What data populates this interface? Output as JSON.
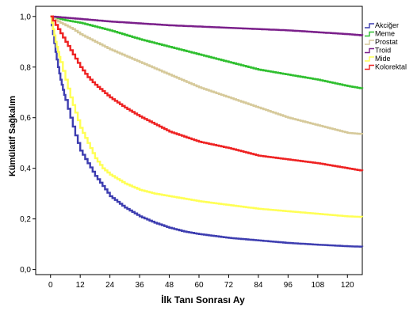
{
  "chart_data": {
    "type": "line",
    "title": "",
    "xlabel": "İlk Tanı Sonrası Ay",
    "ylabel": "Kümülatif Sağkalım",
    "xlim": [
      -6,
      126
    ],
    "ylim": [
      -0.02,
      1.04
    ],
    "xticks": [
      0,
      12,
      24,
      36,
      48,
      60,
      72,
      84,
      96,
      108,
      120
    ],
    "yticks": [
      0.0,
      0.2,
      0.4,
      0.6,
      0.8,
      1.0
    ],
    "ytick_labels": [
      "0,0",
      "0,2",
      "0,4",
      "0,6",
      "0,8",
      "1,0"
    ],
    "grid": false,
    "legend_position": "top-right",
    "series": [
      {
        "name": "Akciğer",
        "color": "#3d3db0",
        "x": [
          0,
          1,
          2,
          3,
          4,
          5,
          6,
          8,
          10,
          12,
          15,
          18,
          21,
          24,
          30,
          36,
          42,
          48,
          54,
          60,
          72,
          84,
          96,
          108,
          120,
          126
        ],
        "y": [
          1.0,
          0.93,
          0.86,
          0.8,
          0.75,
          0.71,
          0.67,
          0.6,
          0.53,
          0.47,
          0.42,
          0.37,
          0.33,
          0.29,
          0.245,
          0.21,
          0.185,
          0.165,
          0.15,
          0.14,
          0.125,
          0.115,
          0.105,
          0.098,
          0.092,
          0.09
        ]
      },
      {
        "name": "Meme",
        "color": "#2fbf2f",
        "x": [
          0,
          6,
          12,
          18,
          24,
          36,
          48,
          60,
          72,
          84,
          96,
          108,
          120,
          126
        ],
        "y": [
          1.0,
          0.985,
          0.975,
          0.96,
          0.945,
          0.91,
          0.88,
          0.85,
          0.82,
          0.79,
          0.77,
          0.75,
          0.725,
          0.715
        ]
      },
      {
        "name": "Prostat",
        "color": "#d6c99a",
        "x": [
          0,
          3,
          6,
          9,
          12,
          18,
          24,
          36,
          48,
          60,
          72,
          84,
          96,
          108,
          120,
          126
        ],
        "y": [
          1.0,
          0.98,
          0.965,
          0.95,
          0.93,
          0.9,
          0.87,
          0.82,
          0.77,
          0.72,
          0.68,
          0.64,
          0.6,
          0.57,
          0.54,
          0.535
        ]
      },
      {
        "name": "Troid",
        "color": "#7a1f8a",
        "x": [
          0,
          12,
          24,
          48,
          72,
          96,
          120,
          126
        ],
        "y": [
          1.0,
          0.99,
          0.98,
          0.965,
          0.955,
          0.945,
          0.93,
          0.925
        ]
      },
      {
        "name": "Mide",
        "color": "#ffff55",
        "x": [
          0,
          1,
          2,
          3,
          4,
          6,
          8,
          10,
          12,
          15,
          18,
          21,
          24,
          30,
          36,
          42,
          48,
          54,
          60,
          72,
          84,
          96,
          108,
          120,
          126
        ],
        "y": [
          1.0,
          0.95,
          0.9,
          0.86,
          0.82,
          0.75,
          0.68,
          0.62,
          0.56,
          0.5,
          0.44,
          0.4,
          0.375,
          0.34,
          0.315,
          0.3,
          0.29,
          0.28,
          0.27,
          0.255,
          0.24,
          0.23,
          0.22,
          0.21,
          0.208
        ]
      },
      {
        "name": "Kolorektal",
        "color": "#ee2222",
        "x": [
          0,
          3,
          6,
          9,
          12,
          15,
          18,
          24,
          30,
          36,
          42,
          48,
          54,
          60,
          72,
          84,
          96,
          108,
          120,
          126
        ],
        "y": [
          1.0,
          0.95,
          0.9,
          0.85,
          0.8,
          0.76,
          0.73,
          0.68,
          0.64,
          0.605,
          0.575,
          0.545,
          0.525,
          0.505,
          0.48,
          0.45,
          0.435,
          0.42,
          0.4,
          0.39
        ]
      }
    ]
  }
}
